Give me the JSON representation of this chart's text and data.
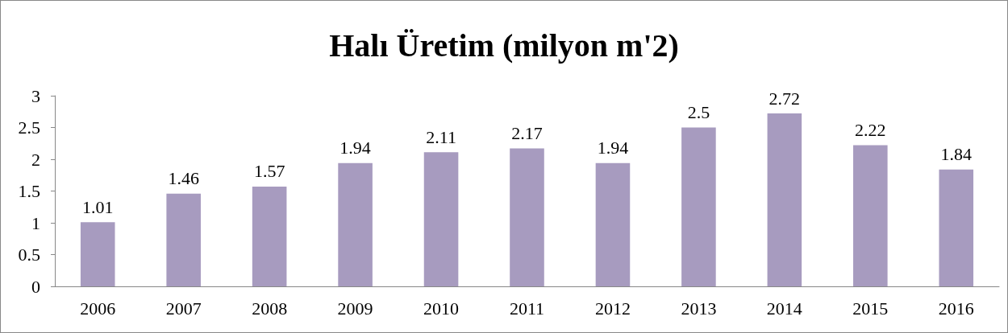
{
  "chart_data": {
    "type": "bar",
    "title": "Halı Üretim (milyon m'2)",
    "categories": [
      "2006",
      "2007",
      "2008",
      "2009",
      "2010",
      "2011",
      "2012",
      "2013",
      "2014",
      "2015",
      "2016"
    ],
    "values": [
      1.01,
      1.46,
      1.57,
      1.94,
      2.11,
      2.17,
      1.94,
      2.5,
      2.72,
      2.22,
      1.84
    ],
    "color": "#a79bbf",
    "ylim": [
      0,
      3
    ],
    "yticks": [
      0,
      0.5,
      1,
      1.5,
      2,
      2.5,
      3
    ],
    "grid": false,
    "data_labels": true
  }
}
